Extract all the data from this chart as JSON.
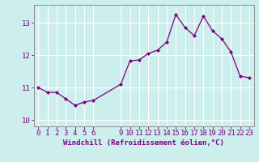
{
  "x": [
    0,
    1,
    2,
    3,
    4,
    5,
    6,
    9,
    10,
    11,
    12,
    13,
    14,
    15,
    16,
    17,
    18,
    19,
    20,
    21,
    22,
    23
  ],
  "y": [
    11.0,
    10.85,
    10.85,
    10.65,
    10.45,
    10.55,
    10.6,
    11.1,
    11.82,
    11.85,
    12.05,
    12.15,
    12.4,
    13.25,
    12.85,
    12.6,
    13.2,
    12.75,
    12.5,
    12.1,
    11.35,
    11.3
  ],
  "line_color": "#800080",
  "marker": "D",
  "marker_size": 2.0,
  "bg_color": "#cceeed",
  "grid_color": "#ffffff",
  "xlabel": "Windchill (Refroidissement éolien,°C)",
  "xlabel_color": "#800080",
  "tick_color": "#800080",
  "ylim": [
    9.8,
    13.55
  ],
  "xlim": [
    -0.5,
    23.5
  ],
  "yticks": [
    10,
    11,
    12,
    13
  ],
  "xticks": [
    0,
    1,
    2,
    3,
    4,
    5,
    6,
    9,
    10,
    11,
    12,
    13,
    14,
    15,
    16,
    17,
    18,
    19,
    20,
    21,
    22,
    23
  ],
  "spine_color": "#808080",
  "tick_fontsize": 6.5,
  "xlabel_fontsize": 6.5,
  "linewidth": 0.9
}
